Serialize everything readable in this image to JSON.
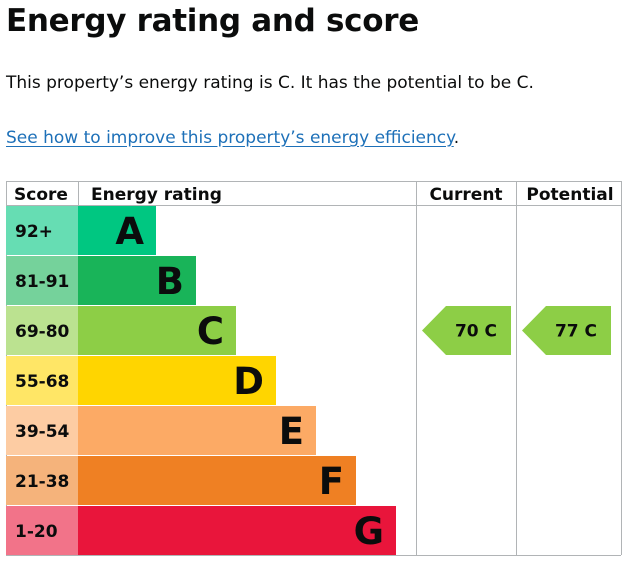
{
  "heading": "Energy rating and score",
  "summary": "This property’s energy rating is C. It has the potential to be C.",
  "link": {
    "text": "See how to improve this property’s energy efficiency",
    "suffix": "."
  },
  "chart_data": {
    "type": "table",
    "headers": {
      "score": "Score",
      "rating": "Energy rating",
      "current": "Current",
      "potential": "Potential"
    },
    "bands": [
      {
        "range": "92+",
        "letter": "A",
        "color": "#00c781",
        "score_bg": "#66ddb3"
      },
      {
        "range": "81-91",
        "letter": "B",
        "color": "#19b459",
        "score_bg": "#75d29b"
      },
      {
        "range": "69-80",
        "letter": "C",
        "color": "#8dce46",
        "score_bg": "#bbe290"
      },
      {
        "range": "55-68",
        "letter": "D",
        "color": "#ffd500",
        "score_bg": "#ffe666"
      },
      {
        "range": "39-54",
        "letter": "E",
        "color": "#fcaa65",
        "score_bg": "#fdcca3"
      },
      {
        "range": "21-38",
        "letter": "F",
        "color": "#ef8023",
        "score_bg": "#f5b37b"
      },
      {
        "range": "1-20",
        "letter": "G",
        "color": "#e9153b",
        "score_bg": "#f27389"
      }
    ],
    "current": {
      "value": 70,
      "letter": "C",
      "label": "70  C",
      "color": "#8dce46"
    },
    "potential": {
      "value": 77,
      "letter": "C",
      "label": "77  C",
      "color": "#8dce46"
    }
  }
}
